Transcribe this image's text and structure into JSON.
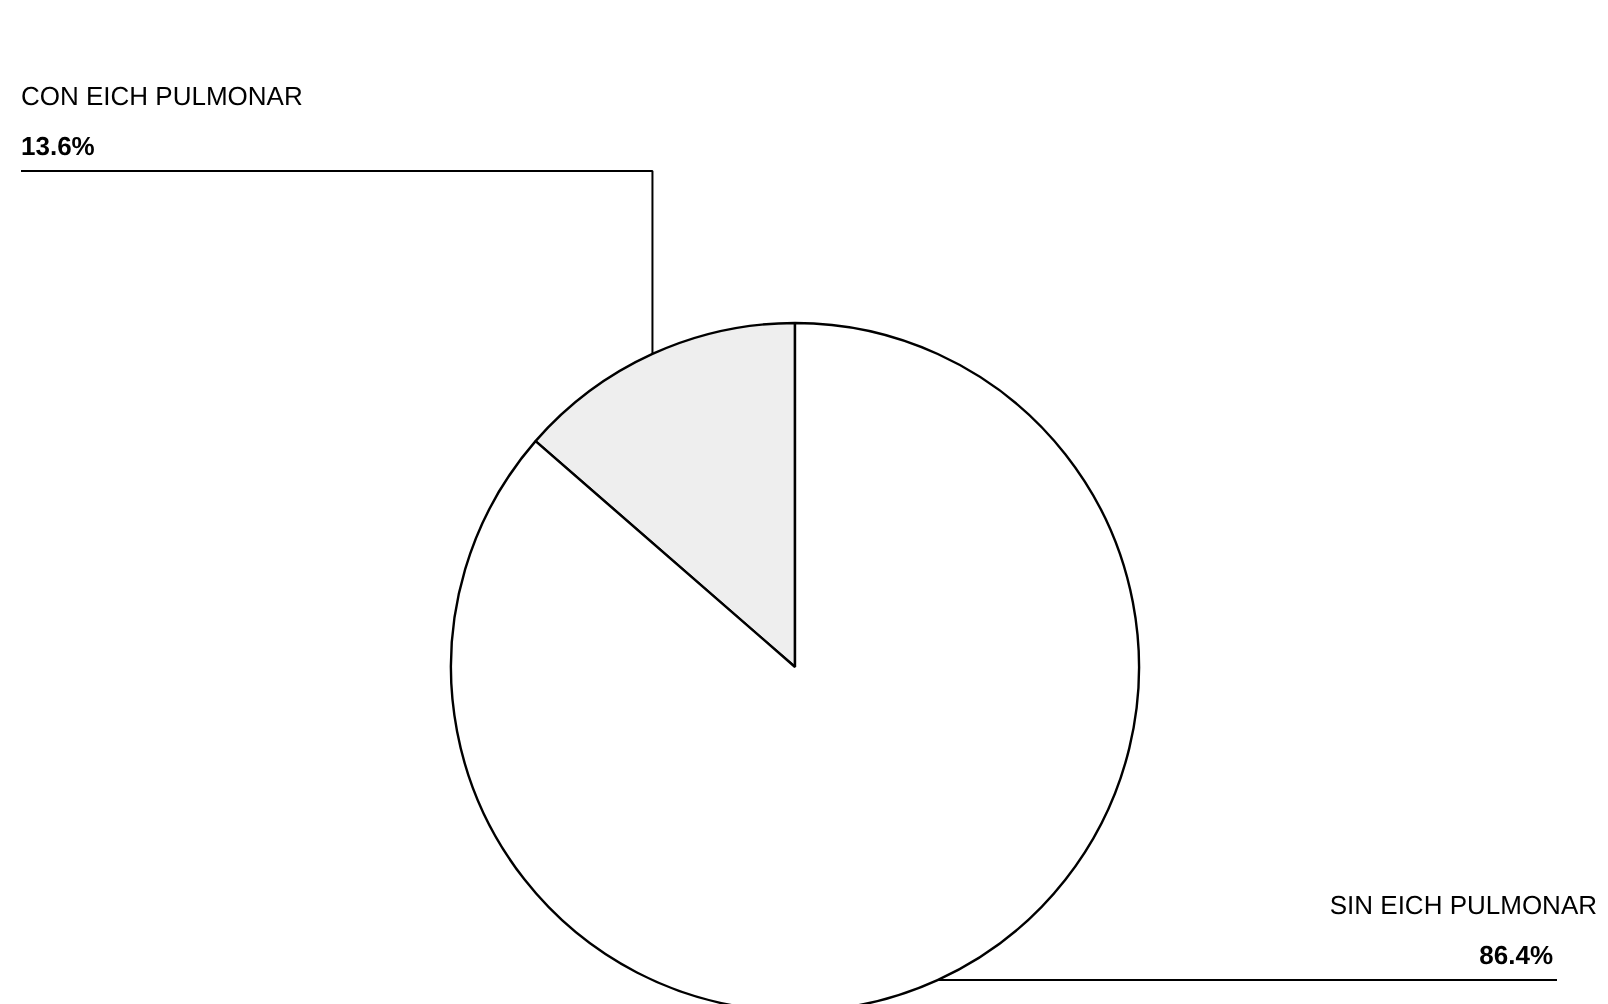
{
  "chart_data": {
    "type": "pie",
    "categories": [
      "CON EICH PULMONAR",
      "SIN EICH PULMONAR"
    ],
    "values": [
      13.6,
      86.4
    ],
    "colors": [
      "#eeeeee",
      "#ffffff"
    ],
    "value_labels": [
      "13.6%",
      "86.4%"
    ]
  }
}
